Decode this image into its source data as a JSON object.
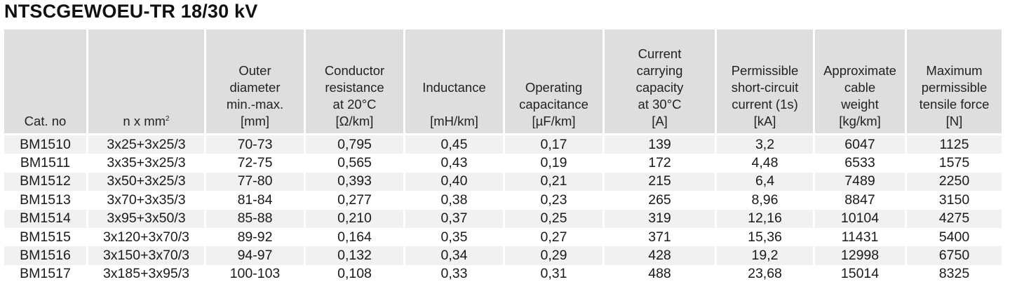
{
  "title": "NTSCGEWOEU-TR 18/30 kV",
  "columns": [
    {
      "lines": [
        "Cat. no"
      ]
    },
    {
      "lines": [
        "n x mm"
      ],
      "sup": "2"
    },
    {
      "lines": [
        "Outer",
        "diameter",
        "min.-max.",
        "[mm]"
      ]
    },
    {
      "lines": [
        "Conductor",
        "resistance",
        "at 20°C",
        "[Ω/km]"
      ]
    },
    {
      "lines": [
        "Inductance",
        "",
        "[mH/km]"
      ]
    },
    {
      "lines": [
        "Operating",
        "capacitance",
        "[µF/km]"
      ]
    },
    {
      "lines": [
        "Current",
        "carrying",
        "capacity",
        "at 30°C",
        "[A]"
      ]
    },
    {
      "lines": [
        "Permissible",
        "short-circuit",
        "current (1s)",
        "[kA]"
      ]
    },
    {
      "lines": [
        "Approximate",
        "cable",
        "weight",
        "[kg/km]"
      ]
    },
    {
      "lines": [
        "Maximum",
        "permissible",
        "tensile force",
        "[N]"
      ]
    }
  ],
  "rows": [
    [
      "BM1510",
      "3x25+3x25/3",
      "70-73",
      "0,795",
      "0,45",
      "0,17",
      "139",
      "3,2",
      "6047",
      "1125"
    ],
    [
      "BM1511",
      "3x35+3x25/3",
      "72-75",
      "0,565",
      "0,43",
      "0,19",
      "172",
      "4,48",
      "6533",
      "1575"
    ],
    [
      "BM1512",
      "3x50+3x25/3",
      "77-80",
      "0,393",
      "0,40",
      "0,21",
      "215",
      "6,4",
      "7489",
      "2250"
    ],
    [
      "BM1513",
      "3x70+3x35/3",
      "81-84",
      "0,277",
      "0,38",
      "0,23",
      "265",
      "8,96",
      "8847",
      "3150"
    ],
    [
      "BM1514",
      "3x95+3x50/3",
      "85-88",
      "0,210",
      "0,37",
      "0,25",
      "319",
      "12,16",
      "10104",
      "4275"
    ],
    [
      "BM1515",
      "3x120+3x70/3",
      "89-92",
      "0,164",
      "0,35",
      "0,27",
      "371",
      "15,36",
      "11431",
      "5400"
    ],
    [
      "BM1516",
      "3x150+3x70/3",
      "94-97",
      "0,132",
      "0,34",
      "0,29",
      "428",
      "19,2",
      "12998",
      "6750"
    ],
    [
      "BM1517",
      "3x185+3x95/3",
      "100-103",
      "0,108",
      "0,33",
      "0,31",
      "488",
      "23,68",
      "15014",
      "8325"
    ]
  ]
}
